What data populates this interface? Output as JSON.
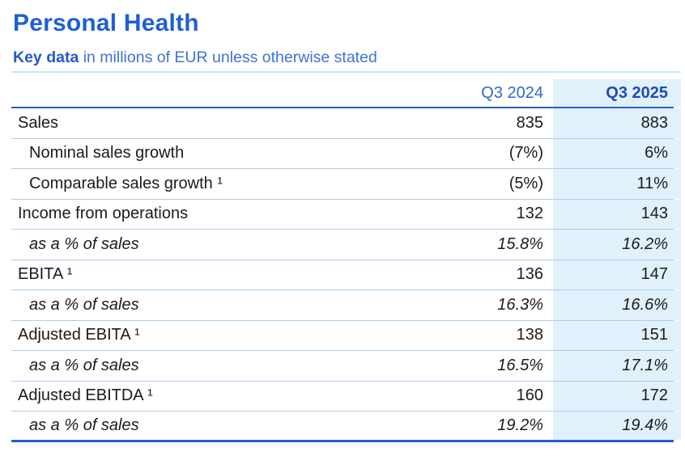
{
  "header": {
    "title": "Personal Health",
    "subtitle_bold": "Key data",
    "subtitle_rest": " in millions of EUR unless otherwise stated"
  },
  "table": {
    "columns": {
      "label": "",
      "q3_2024": "Q3 2024",
      "q3_2025": "Q3 2025"
    },
    "rows": [
      {
        "label": "Sales",
        "style": "normal",
        "q3_2024": "835",
        "q3_2025": "883"
      },
      {
        "label": "Nominal sales growth",
        "style": "indent",
        "q3_2024": "(7%)",
        "q3_2025": "6%"
      },
      {
        "label": "Comparable sales growth ¹",
        "style": "indent",
        "q3_2024": "(5%)",
        "q3_2025": "11%"
      },
      {
        "label": "Income from operations",
        "style": "normal",
        "q3_2024": "132",
        "q3_2025": "143"
      },
      {
        "label": "as a % of sales",
        "style": "italic",
        "q3_2024": "15.8%",
        "q3_2025": "16.2%"
      },
      {
        "label": "EBITA ¹",
        "style": "normal",
        "q3_2024": "136",
        "q3_2025": "147"
      },
      {
        "label": "as a % of sales",
        "style": "italic",
        "q3_2024": "16.3%",
        "q3_2025": "16.6%"
      },
      {
        "label": "Adjusted EBITA ¹",
        "style": "normal",
        "q3_2024": "138",
        "q3_2025": "151"
      },
      {
        "label": "as a % of sales",
        "style": "italic",
        "q3_2024": "16.5%",
        "q3_2025": "17.1%"
      },
      {
        "label": "Adjusted EBITDA ¹",
        "style": "normal",
        "q3_2024": "160",
        "q3_2025": "172"
      },
      {
        "label": "as a % of sales",
        "style": "italic",
        "q3_2024": "19.2%",
        "q3_2025": "19.4%"
      }
    ]
  },
  "colors": {
    "title_blue": "#1E5FD6",
    "subtitle_bold_blue": "#2459C9",
    "subtitle_light_blue": "#3D72DB",
    "header_2024_blue": "#2E68CC",
    "header_2025_blue": "#1B4DB3",
    "dark_rule_blue": "#2A5DC4",
    "light_rule_blue": "#ADCBEA",
    "highlight_column_bg": "#E1F1FB",
    "cyan_rule": "#C2E9F8",
    "body_text": "#1B1B1B"
  }
}
